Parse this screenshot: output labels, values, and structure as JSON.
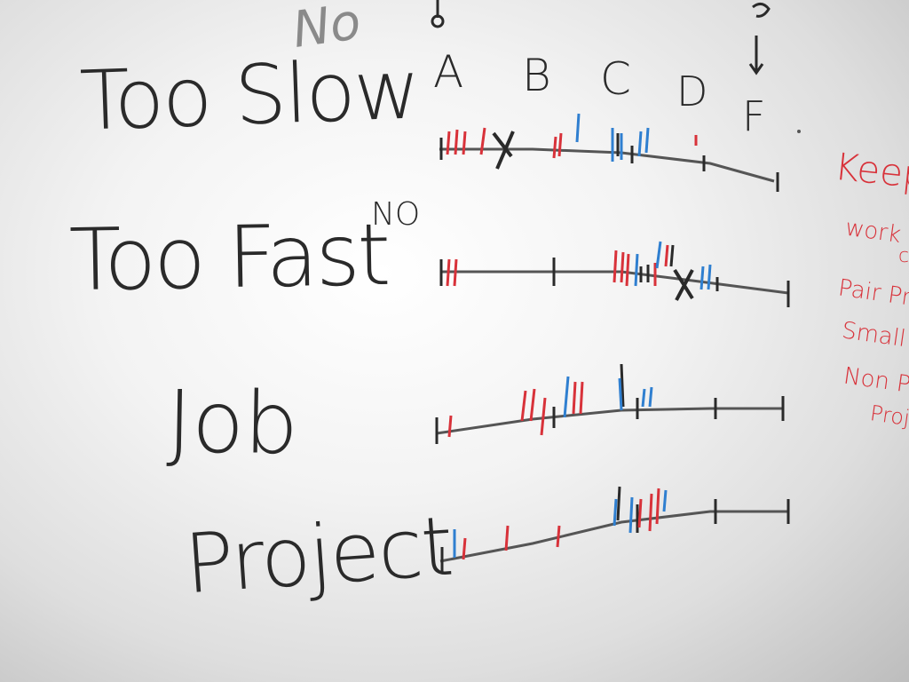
{
  "whiteboard": {
    "rows": [
      {
        "label": "Too Slow",
        "annotation": "No"
      },
      {
        "label": "Too Fast",
        "annotation": "NO"
      },
      {
        "label": "Job"
      },
      {
        "label": "Project"
      }
    ],
    "grade_scale": [
      "A",
      "B",
      "C",
      "D",
      "F"
    ],
    "keep_list": {
      "title": "Keep",
      "items": [
        "work in",
        "c",
        "Pair Pro",
        "Small C",
        "Non Prof",
        "Projec"
      ]
    }
  },
  "colors": {
    "marker_black": "#2a2a2a",
    "marker_red": "#d8323a",
    "marker_blue": "#2f7fd0",
    "marker_grey": "#8a8a8a"
  }
}
